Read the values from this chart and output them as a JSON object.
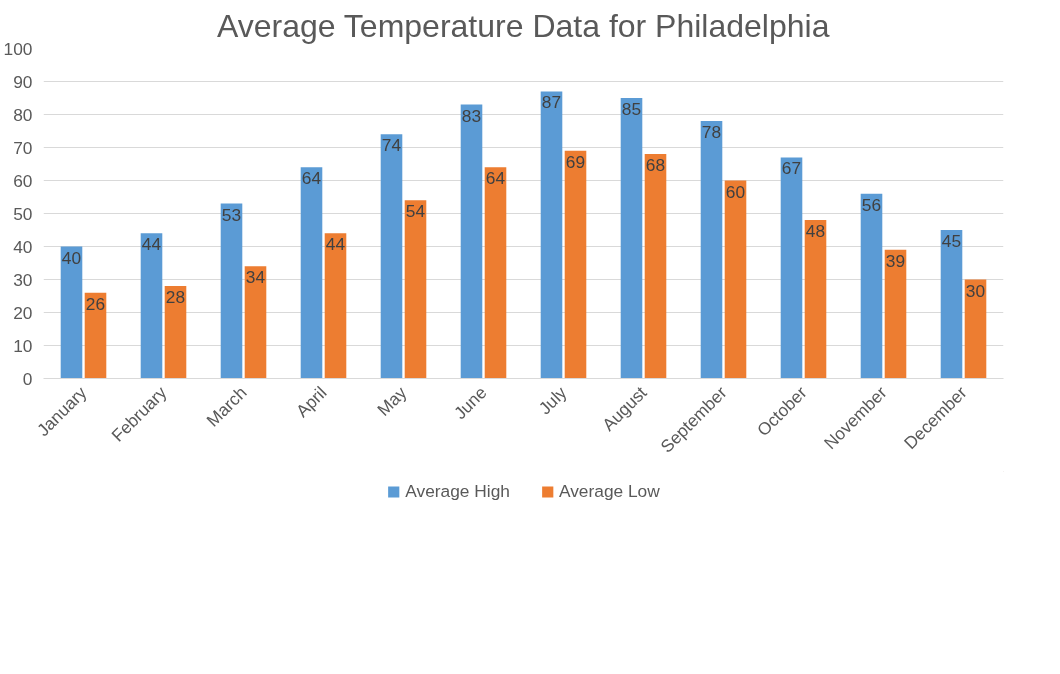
{
  "chart_data": {
    "type": "bar",
    "title": "Average Temperature Data for Philadelphia",
    "categories": [
      "January",
      "February",
      "March",
      "April",
      "May",
      "June",
      "July",
      "August",
      "September",
      "October",
      "November",
      "December"
    ],
    "series": [
      {
        "name": "Average High",
        "color": "#5b9bd5",
        "values": [
          40,
          44,
          53,
          64,
          74,
          83,
          87,
          85,
          78,
          67,
          56,
          45
        ]
      },
      {
        "name": "Average Low",
        "color": "#ed7d31",
        "values": [
          26,
          28,
          34,
          44,
          54,
          64,
          69,
          68,
          60,
          48,
          39,
          30
        ]
      }
    ],
    "ylim": [
      0,
      100
    ],
    "yticks": [
      0,
      10,
      20,
      30,
      40,
      50,
      60,
      70,
      80,
      90,
      100
    ],
    "grid": "y",
    "legend": "bottom",
    "data_labels": true
  }
}
